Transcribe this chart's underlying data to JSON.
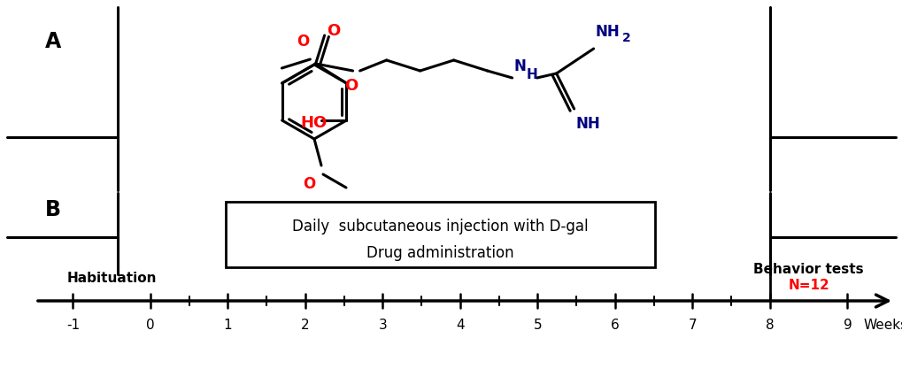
{
  "fig_width": 10.2,
  "fig_height": 4.17,
  "dpi": 100,
  "bg_color": "#ffffff",
  "panel_A_label": "A",
  "panel_B_label": "B",
  "habituation_label": "Habituation",
  "behavior_label": "Behavior tests",
  "n_label": "N=12",
  "weeks_label": "Weeks",
  "box_text1": "Daily  subcutaneous injection with D-gal",
  "box_text2": "Drug administration"
}
